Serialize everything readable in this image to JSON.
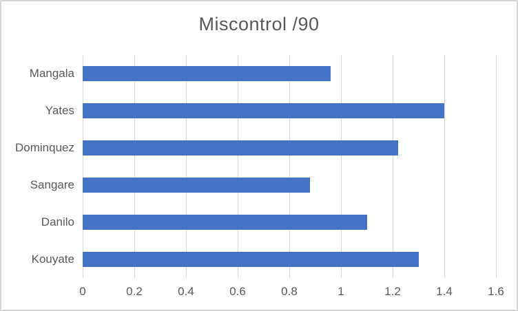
{
  "chart_data": {
    "type": "bar",
    "orientation": "horizontal",
    "title": "Miscontrol /90",
    "categories": [
      "Mangala",
      "Yates",
      "Dominquez",
      "Sangare",
      "Danilo",
      "Kouyate"
    ],
    "values": [
      0.96,
      1.4,
      1.22,
      0.88,
      1.1,
      1.3
    ],
    "xlim": [
      0,
      1.6
    ],
    "x_tick_labels": [
      "0",
      "0.2",
      "0.4",
      "0.6",
      "0.8",
      "1",
      "1.2",
      "1.4",
      "1.6"
    ],
    "grid": true,
    "legend": false,
    "bar_color": "#4472C4",
    "text_color": "#595959",
    "gridline_color": "#D9D9D9",
    "frame_color": "#D9D9D9"
  }
}
